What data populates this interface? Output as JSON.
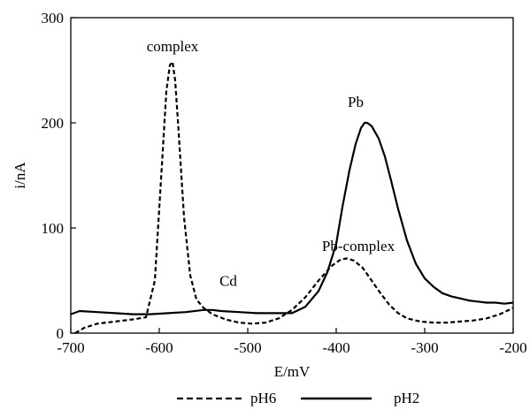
{
  "chart_data": {
    "type": "line",
    "xlabel": "E/mV",
    "ylabel": "i/nA",
    "xlim": [
      -700,
      -200
    ],
    "ylim": [
      0,
      300
    ],
    "xticks": [
      -700,
      -600,
      -500,
      -400,
      -300,
      -200
    ],
    "yticks": [
      0,
      100,
      200,
      300
    ],
    "xtick_labels": [
      "-700",
      "-600",
      "-500",
      "-400",
      "-300",
      "-200"
    ],
    "ytick_labels": [
      "0",
      "100",
      "200",
      "300"
    ],
    "grid": false,
    "legend_position": "bottom",
    "series": [
      {
        "name": "pH6",
        "dash": "dashed",
        "x": [
          -695,
          -685,
          -670,
          -650,
          -630,
          -615,
          -605,
          -597,
          -592,
          -588,
          -585,
          -582,
          -578,
          -572,
          -565,
          -558,
          -550,
          -540,
          -525,
          -510,
          -495,
          -480,
          -465,
          -450,
          -435,
          -420,
          -405,
          -395,
          -388,
          -380,
          -370,
          -360,
          -350,
          -340,
          -330,
          -320,
          -305,
          -290,
          -275,
          -260,
          -245,
          -230,
          -215,
          -200
        ],
        "y": [
          0,
          5,
          9,
          11,
          13,
          15,
          50,
          160,
          230,
          255,
          258,
          240,
          190,
          110,
          55,
          32,
          24,
          18,
          13,
          10,
          9,
          10,
          14,
          22,
          34,
          50,
          64,
          70,
          71,
          69,
          62,
          50,
          38,
          27,
          19,
          14,
          11,
          10,
          10,
          11,
          12,
          14,
          18,
          24
        ]
      },
      {
        "name": "pH2",
        "dash": "solid",
        "x": [
          -700,
          -690,
          -670,
          -650,
          -630,
          -610,
          -590,
          -570,
          -550,
          -540,
          -530,
          -510,
          -490,
          -470,
          -450,
          -435,
          -420,
          -410,
          -400,
          -393,
          -385,
          -378,
          -372,
          -368,
          -365,
          -360,
          -352,
          -345,
          -338,
          -330,
          -320,
          -310,
          -300,
          -290,
          -280,
          -270,
          -260,
          -250,
          -240,
          -230,
          -220,
          -210,
          -200
        ],
        "y": [
          18,
          21,
          20,
          19,
          18,
          18,
          19,
          20,
          22,
          22,
          21,
          20,
          19,
          19,
          19,
          25,
          40,
          58,
          85,
          120,
          155,
          180,
          195,
          200,
          200,
          197,
          185,
          168,
          145,
          118,
          88,
          66,
          52,
          44,
          38,
          35,
          33,
          31,
          30,
          29,
          29,
          28,
          29
        ]
      }
    ],
    "annotations": [
      {
        "text": "complex",
        "x": -585,
        "y": 268
      },
      {
        "text": "Pb",
        "x": -378,
        "y": 215
      },
      {
        "text": "Pb-complex",
        "x": -375,
        "y": 78
      },
      {
        "text": "Cd",
        "x": -522,
        "y": 45
      }
    ]
  }
}
